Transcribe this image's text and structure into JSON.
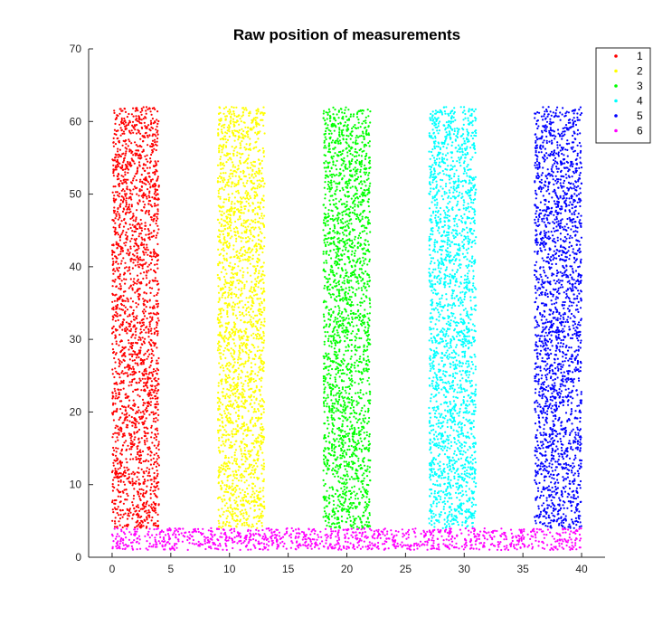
{
  "chart_data": {
    "type": "scatter",
    "title": "Raw position of measurements",
    "xlabel": "",
    "ylabel": "",
    "xlim": [
      -2,
      42
    ],
    "ylim": [
      0,
      70
    ],
    "x_ticks": [
      "0",
      "5",
      "10",
      "15",
      "20",
      "25",
      "30",
      "35",
      "40"
    ],
    "y_ticks": [
      "0",
      "10",
      "20",
      "30",
      "40",
      "50",
      "60",
      "70"
    ],
    "grid": false,
    "legend_position": "top-right",
    "series": [
      {
        "name": "1",
        "color": "#ff0000",
        "x_range": [
          0,
          4
        ],
        "y_range": [
          4,
          62
        ]
      },
      {
        "name": "2",
        "color": "#ffff00",
        "x_range": [
          9,
          13
        ],
        "y_range": [
          4,
          62
        ]
      },
      {
        "name": "3",
        "color": "#00ff00",
        "x_range": [
          18,
          22
        ],
        "y_range": [
          4,
          62
        ]
      },
      {
        "name": "4",
        "color": "#00ffff",
        "x_range": [
          27,
          31
        ],
        "y_range": [
          4,
          62
        ]
      },
      {
        "name": "5",
        "color": "#0000ff",
        "x_range": [
          36,
          40
        ],
        "y_range": [
          4,
          62
        ]
      },
      {
        "name": "6",
        "color": "#ff00ff",
        "x_range": [
          0,
          40
        ],
        "y_range": [
          1,
          4
        ]
      }
    ]
  }
}
